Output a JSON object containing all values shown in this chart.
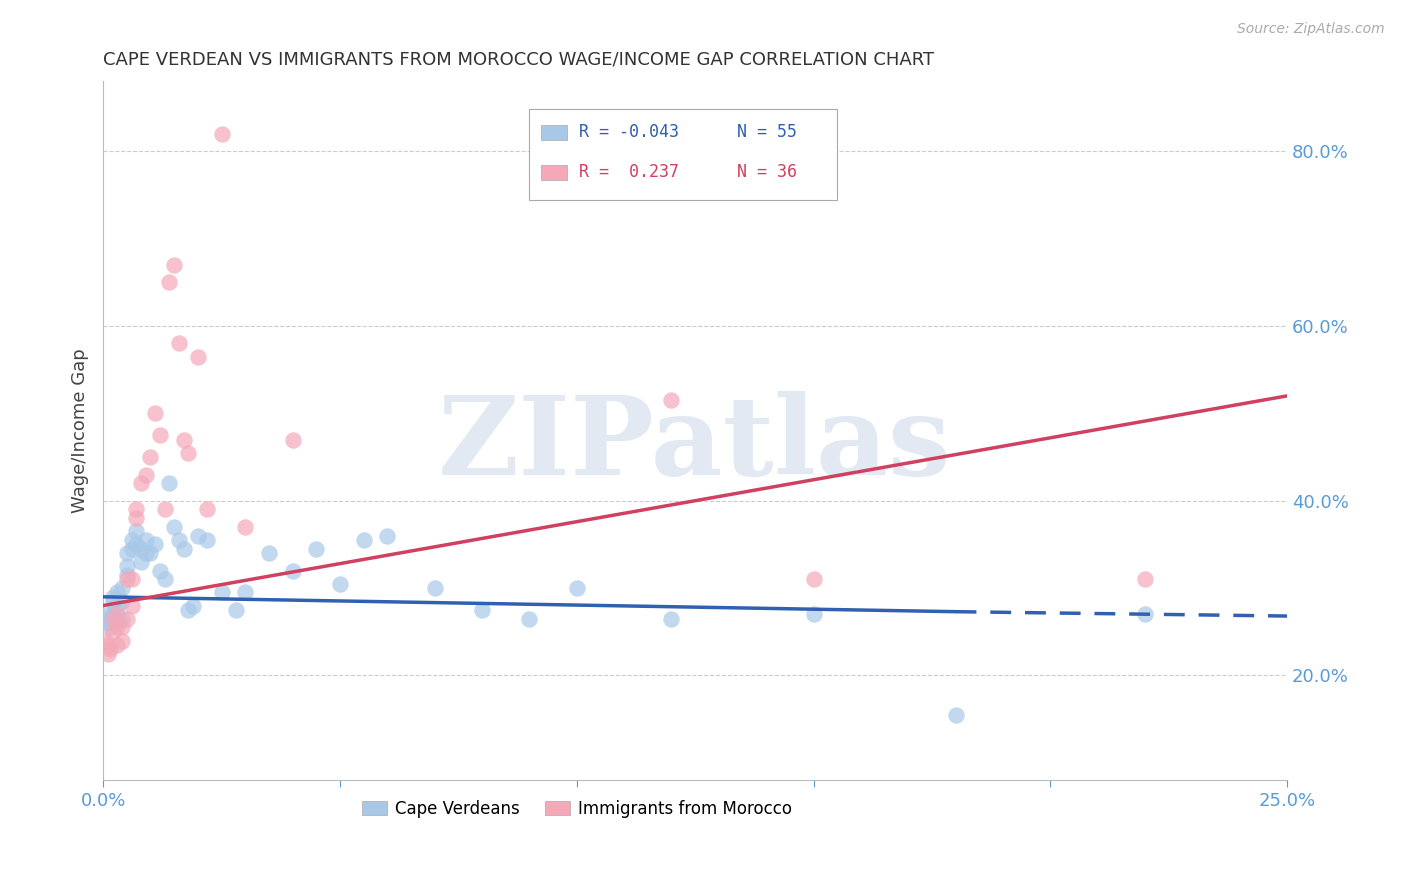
{
  "title": "CAPE VERDEAN VS IMMIGRANTS FROM MOROCCO WAGE/INCOME GAP CORRELATION CHART",
  "source": "Source: ZipAtlas.com",
  "ylabel": "Wage/Income Gap",
  "ylabel_right_ticks": [
    0.2,
    0.4,
    0.6,
    0.8
  ],
  "ylabel_right_labels": [
    "20.0%",
    "40.0%",
    "60.0%",
    "80.0%"
  ],
  "watermark": "ZIPatlas",
  "xlim": [
    0.0,
    0.25
  ],
  "ylim": [
    0.08,
    0.88
  ],
  "blue_color": "#a8c8e8",
  "pink_color": "#f4a8b8",
  "blue_line_color": "#3060b0",
  "pink_line_color": "#d04060",
  "blue_x": [
    0.0005,
    0.001,
    0.001,
    0.0015,
    0.002,
    0.002,
    0.002,
    0.0025,
    0.003,
    0.003,
    0.003,
    0.003,
    0.004,
    0.004,
    0.004,
    0.005,
    0.005,
    0.005,
    0.006,
    0.006,
    0.007,
    0.007,
    0.008,
    0.008,
    0.009,
    0.009,
    0.01,
    0.011,
    0.012,
    0.013,
    0.014,
    0.015,
    0.016,
    0.017,
    0.018,
    0.019,
    0.02,
    0.022,
    0.025,
    0.028,
    0.03,
    0.035,
    0.04,
    0.045,
    0.05,
    0.055,
    0.06,
    0.07,
    0.08,
    0.09,
    0.1,
    0.12,
    0.15,
    0.18,
    0.22
  ],
  "blue_y": [
    0.265,
    0.27,
    0.26,
    0.255,
    0.285,
    0.29,
    0.27,
    0.275,
    0.295,
    0.28,
    0.26,
    0.265,
    0.3,
    0.285,
    0.265,
    0.34,
    0.325,
    0.315,
    0.355,
    0.345,
    0.365,
    0.35,
    0.345,
    0.33,
    0.355,
    0.34,
    0.34,
    0.35,
    0.32,
    0.31,
    0.42,
    0.37,
    0.355,
    0.345,
    0.275,
    0.28,
    0.36,
    0.355,
    0.295,
    0.275,
    0.295,
    0.34,
    0.32,
    0.345,
    0.305,
    0.355,
    0.36,
    0.3,
    0.275,
    0.265,
    0.3,
    0.265,
    0.27,
    0.155,
    0.27
  ],
  "pink_x": [
    0.0005,
    0.001,
    0.001,
    0.0015,
    0.002,
    0.002,
    0.003,
    0.003,
    0.003,
    0.004,
    0.004,
    0.005,
    0.005,
    0.006,
    0.006,
    0.007,
    0.007,
    0.008,
    0.009,
    0.01,
    0.011,
    0.012,
    0.013,
    0.014,
    0.015,
    0.016,
    0.017,
    0.018,
    0.02,
    0.022,
    0.025,
    0.03,
    0.04,
    0.12,
    0.15,
    0.22
  ],
  "pink_y": [
    0.24,
    0.235,
    0.225,
    0.23,
    0.265,
    0.25,
    0.27,
    0.255,
    0.235,
    0.255,
    0.24,
    0.265,
    0.31,
    0.28,
    0.31,
    0.38,
    0.39,
    0.42,
    0.43,
    0.45,
    0.5,
    0.475,
    0.39,
    0.65,
    0.67,
    0.58,
    0.47,
    0.455,
    0.565,
    0.39,
    0.82,
    0.37,
    0.47,
    0.515,
    0.31,
    0.31
  ],
  "blue_trend_x": [
    0.0,
    0.18,
    0.25
  ],
  "blue_trend_y": [
    0.29,
    0.273,
    0.268
  ],
  "pink_trend_x": [
    0.0,
    0.25
  ],
  "pink_trend_y": [
    0.28,
    0.52
  ]
}
